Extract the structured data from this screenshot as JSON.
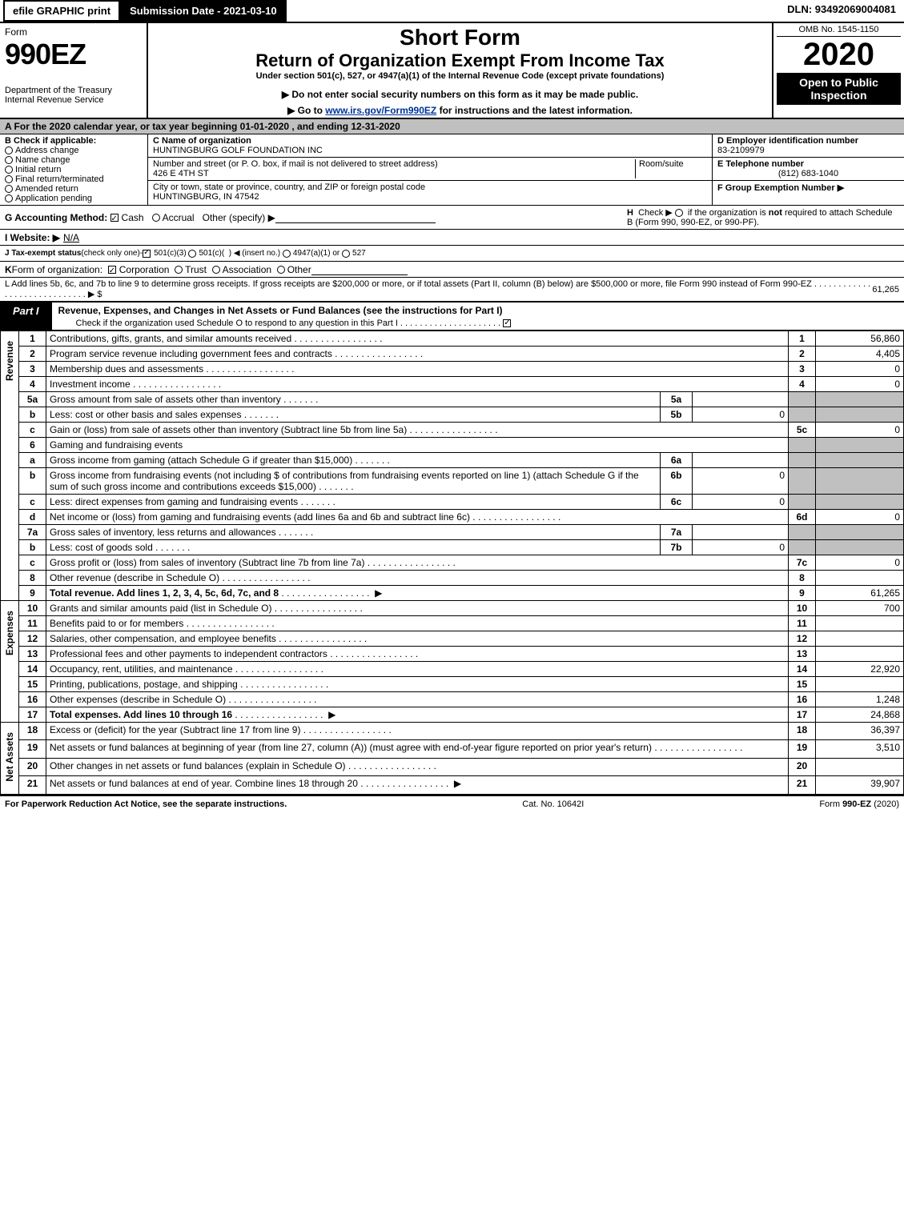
{
  "topbar": {
    "efile": "efile GRAPHIC print",
    "submission": "Submission Date - 2021-03-10",
    "dln": "DLN: 93492069004081"
  },
  "header": {
    "form_word": "Form",
    "form_num": "990EZ",
    "dept": "Department of the Treasury\nInternal Revenue Service",
    "short_form": "Short Form",
    "title": "Return of Organization Exempt From Income Tax",
    "subtitle": "Under section 501(c), 527, or 4947(a)(1) of the Internal Revenue Code (except private foundations)",
    "note1": "▶ Do not enter social security numbers on this form as it may be made public.",
    "note2_pre": "▶ Go to ",
    "note2_link": "www.irs.gov/Form990EZ",
    "note2_post": " for instructions and the latest information.",
    "omb": "OMB No. 1545-1150",
    "year": "2020",
    "open": "Open to Public Inspection"
  },
  "section_a": "A  For the 2020 calendar year, or tax year beginning 01-01-2020 , and ending 12-31-2020",
  "b": {
    "title": "B  Check if applicable:",
    "items": [
      "Address change",
      "Name change",
      "Initial return",
      "Final return/terminated",
      "Amended return",
      "Application pending"
    ]
  },
  "c": {
    "name_label": "C Name of organization",
    "name": "HUNTINGBURG GOLF FOUNDATION INC",
    "addr_label": "Number and street (or P. O. box, if mail is not delivered to street address)",
    "room_label": "Room/suite",
    "addr": "426 E 4TH ST",
    "city_label": "City or town, state or province, country, and ZIP or foreign postal code",
    "city": "HUNTINGBURG, IN  47542"
  },
  "d": {
    "ein_label": "D Employer identification number",
    "ein": "83-2109979",
    "tel_label": "E Telephone number",
    "tel": "(812) 683-1040",
    "grp_label": "F Group Exemption Number  ▶"
  },
  "g": {
    "label": "G Accounting Method:",
    "cash": "Cash",
    "accrual": "Accrual",
    "other": "Other (specify) ▶"
  },
  "h_text": "H   Check ▶        if the organization is not required to attach Schedule B (Form 990, 990-EZ, or 990-PF).",
  "i": {
    "label": "I Website: ▶",
    "val": "N/A"
  },
  "j": "J Tax-exempt status (check only one) -        501(c)(3)       501(c)(  ) ◀ (insert no.)       4947(a)(1) or       527",
  "k": "K Form of organization:        Corporation       Trust       Association       Other",
  "l": {
    "text": "L Add lines 5b, 6c, and 7b to line 9 to determine gross receipts. If gross receipts are $200,000 or more, or if total assets (Part II, column (B) below) are $500,000 or more, file Form 990 instead of Form 990-EZ  .  .  .  .  .  .  .  .  .  .  .  .  .  .  .  .  .  .  .  .  .  .  .  .  .  .  .  .  .  ▶ $ ",
    "val": "61,265"
  },
  "part1": {
    "tab": "Part I",
    "title": "Revenue, Expenses, and Changes in Net Assets or Fund Balances (see the instructions for Part I)",
    "check": "Check if the organization used Schedule O to respond to any question in this Part I .  .  .  .  .  .  .  .  .  .  .  .  .  .  .  .  .  .  .  .  ."
  },
  "sections": {
    "rev": "Revenue",
    "exp": "Expenses",
    "na": "Net Assets"
  },
  "rev": [
    {
      "n": "1",
      "d": "Contributions, gifts, grants, and similar amounts received",
      "b": "1",
      "a": "56,860"
    },
    {
      "n": "2",
      "d": "Program service revenue including government fees and contracts",
      "b": "2",
      "a": "4,405"
    },
    {
      "n": "3",
      "d": "Membership dues and assessments",
      "b": "3",
      "a": "0"
    },
    {
      "n": "4",
      "d": "Investment income",
      "b": "4",
      "a": "0"
    },
    {
      "n": "5a",
      "d": "Gross amount from sale of assets other than inventory",
      "ib": "5a",
      "ia": ""
    },
    {
      "n": "b",
      "d": "Less: cost or other basis and sales expenses",
      "ib": "5b",
      "ia": "0"
    },
    {
      "n": "c",
      "d": "Gain or (loss) from sale of assets other than inventory (Subtract line 5b from line 5a)",
      "b": "5c",
      "a": "0"
    },
    {
      "n": "6",
      "d": "Gaming and fundraising events"
    },
    {
      "n": "a",
      "d": "Gross income from gaming (attach Schedule G if greater than $15,000)",
      "ib": "6a",
      "ia": ""
    },
    {
      "n": "b",
      "d": "Gross income from fundraising events (not including $                         of contributions from fundraising events reported on line 1) (attach Schedule G if the sum of such gross income and contributions exceeds $15,000)",
      "ib": "6b",
      "ia": "0"
    },
    {
      "n": "c",
      "d": "Less: direct expenses from gaming and fundraising events",
      "ib": "6c",
      "ia": "0"
    },
    {
      "n": "d",
      "d": "Net income or (loss) from gaming and fundraising events (add lines 6a and 6b and subtract line 6c)",
      "b": "6d",
      "a": "0"
    },
    {
      "n": "7a",
      "d": "Gross sales of inventory, less returns and allowances",
      "ib": "7a",
      "ia": ""
    },
    {
      "n": "b",
      "d": "Less: cost of goods sold",
      "ib": "7b",
      "ia": "0"
    },
    {
      "n": "c",
      "d": "Gross profit or (loss) from sales of inventory (Subtract line 7b from line 7a)",
      "b": "7c",
      "a": "0"
    },
    {
      "n": "8",
      "d": "Other revenue (describe in Schedule O)",
      "b": "8",
      "a": ""
    },
    {
      "n": "9",
      "d": "Total revenue. Add lines 1, 2, 3, 4, 5c, 6d, 7c, and 8",
      "b": "9",
      "a": "61,265",
      "bold": true,
      "arrow": true
    }
  ],
  "exp": [
    {
      "n": "10",
      "d": "Grants and similar amounts paid (list in Schedule O)",
      "b": "10",
      "a": "700"
    },
    {
      "n": "11",
      "d": "Benefits paid to or for members",
      "b": "11",
      "a": ""
    },
    {
      "n": "12",
      "d": "Salaries, other compensation, and employee benefits",
      "b": "12",
      "a": ""
    },
    {
      "n": "13",
      "d": "Professional fees and other payments to independent contractors",
      "b": "13",
      "a": ""
    },
    {
      "n": "14",
      "d": "Occupancy, rent, utilities, and maintenance",
      "b": "14",
      "a": "22,920"
    },
    {
      "n": "15",
      "d": "Printing, publications, postage, and shipping",
      "b": "15",
      "a": ""
    },
    {
      "n": "16",
      "d": "Other expenses (describe in Schedule O)",
      "b": "16",
      "a": "1,248"
    },
    {
      "n": "17",
      "d": "Total expenses. Add lines 10 through 16",
      "b": "17",
      "a": "24,868",
      "bold": true,
      "arrow": true
    }
  ],
  "na": [
    {
      "n": "18",
      "d": "Excess or (deficit) for the year (Subtract line 17 from line 9)",
      "b": "18",
      "a": "36,397"
    },
    {
      "n": "19",
      "d": "Net assets or fund balances at beginning of year (from line 27, column (A)) (must agree with end-of-year figure reported on prior year's return)",
      "b": "19",
      "a": "3,510"
    },
    {
      "n": "20",
      "d": "Other changes in net assets or fund balances (explain in Schedule O)",
      "b": "20",
      "a": ""
    },
    {
      "n": "21",
      "d": "Net assets or fund balances at end of year. Combine lines 18 through 20",
      "b": "21",
      "a": "39,907",
      "arrow": true
    }
  ],
  "footer": {
    "left": "For Paperwork Reduction Act Notice, see the separate instructions.",
    "mid": "Cat. No. 10642I",
    "right": "Form 990-EZ (2020)"
  }
}
